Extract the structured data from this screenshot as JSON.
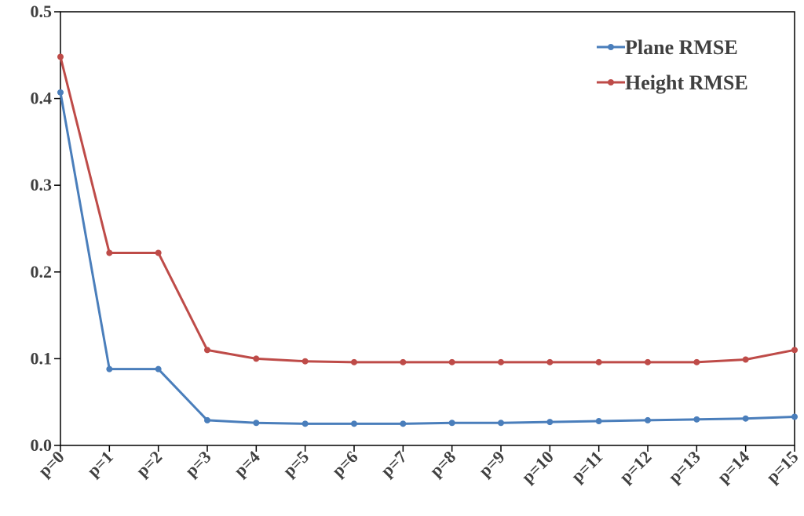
{
  "chart_data": {
    "type": "line",
    "title": "",
    "xlabel": "",
    "ylabel": "",
    "categories": [
      "p=0",
      "p=1",
      "p=2",
      "p=3",
      "p=4",
      "p=5",
      "p=6",
      "p=7",
      "p=8",
      "p=9",
      "p=10",
      "p=11",
      "p=12",
      "p=13",
      "p=14",
      "p=15"
    ],
    "y_ticks": [
      "0.0",
      "0.1",
      "0.2",
      "0.3",
      "0.4",
      "0.5"
    ],
    "ylim": [
      0,
      0.5
    ],
    "grid": false,
    "legend_position": "top-right",
    "series": [
      {
        "name": "Plane RMSE",
        "color": "#4a7ebb",
        "values": [
          0.407,
          0.088,
          0.088,
          0.029,
          0.026,
          0.025,
          0.025,
          0.025,
          0.026,
          0.026,
          0.027,
          0.028,
          0.029,
          0.03,
          0.031,
          0.033
        ]
      },
      {
        "name": "Height RMSE",
        "color": "#be4b48",
        "values": [
          0.448,
          0.222,
          0.222,
          0.11,
          0.1,
          0.097,
          0.096,
          0.096,
          0.096,
          0.096,
          0.096,
          0.096,
          0.096,
          0.096,
          0.099,
          0.11
        ]
      }
    ]
  }
}
